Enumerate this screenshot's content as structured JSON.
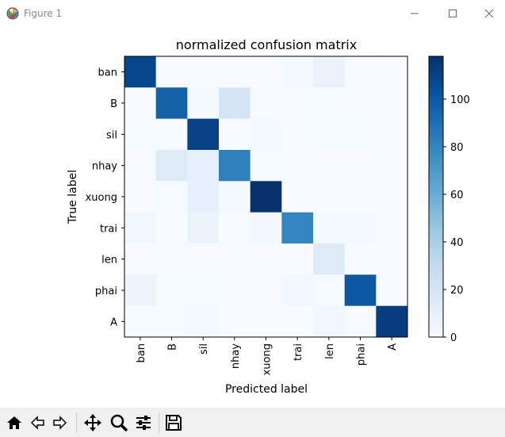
{
  "window": {
    "title": "Figure 1",
    "app_icon": "matplotlib-icon",
    "controls": [
      "minimize-icon",
      "maximize-icon",
      "close-icon"
    ]
  },
  "toolbar": {
    "buttons": [
      "home-icon",
      "back-icon",
      "forward-icon",
      "pan-icon",
      "zoom-icon",
      "configure-subplots-icon",
      "save-icon"
    ]
  },
  "chart_data": {
    "type": "heatmap",
    "title": "normalized confusion matrix",
    "xlabel": "Predicted label",
    "ylabel": "True label",
    "x_categories": [
      "ban",
      "B",
      "sil",
      "nhay",
      "xuong",
      "trai",
      "len",
      "phai",
      "A"
    ],
    "y_categories": [
      "ban",
      "B",
      "sil",
      "nhay",
      "xuong",
      "trai",
      "len",
      "phai",
      "A"
    ],
    "values": [
      [
        108,
        0,
        0,
        0,
        0,
        2,
        8,
        0,
        0
      ],
      [
        0,
        96,
        2,
        20,
        0,
        0,
        1,
        0,
        0
      ],
      [
        1,
        1,
        110,
        0,
        2,
        0,
        1,
        1,
        0
      ],
      [
        0,
        15,
        10,
        82,
        1,
        0,
        0,
        0,
        0
      ],
      [
        0,
        1,
        10,
        2,
        118,
        0,
        0,
        0,
        0
      ],
      [
        4,
        0,
        7,
        0,
        3,
        80,
        2,
        2,
        0
      ],
      [
        0,
        0,
        0,
        0,
        0,
        0,
        15,
        0,
        0
      ],
      [
        6,
        1,
        1,
        0,
        0,
        3,
        1,
        100,
        0
      ],
      [
        1,
        1,
        2,
        0,
        0,
        0,
        4,
        0,
        112
      ]
    ],
    "colorbar": {
      "ticks": [
        0,
        20,
        40,
        60,
        80,
        100
      ],
      "range": [
        0,
        118
      ],
      "colormap": "Blues"
    }
  }
}
